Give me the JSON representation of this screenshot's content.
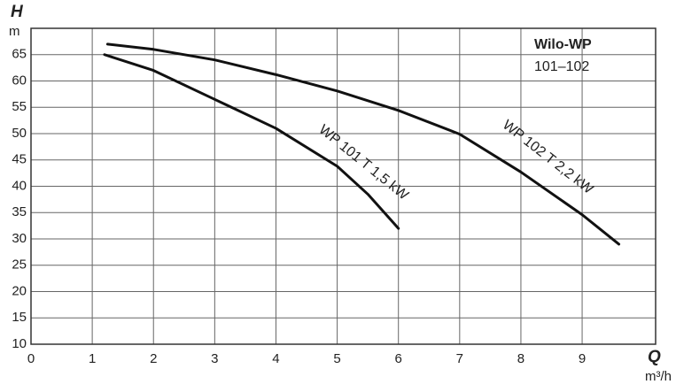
{
  "chart_data": {
    "type": "line",
    "y_label": "H",
    "y_unit": "m",
    "x_label": "Q",
    "x_unit": "m³/h",
    "annotations": [
      "Wilo-WP",
      "101–102"
    ],
    "xlim": [
      0,
      10.2
    ],
    "xticks": [
      0,
      1,
      2,
      3,
      4,
      5,
      6,
      7,
      8,
      9
    ],
    "ylim": [
      10,
      70
    ],
    "yticks": [
      10,
      15,
      20,
      25,
      30,
      35,
      40,
      45,
      50,
      55,
      60,
      65
    ],
    "grid": true,
    "series": [
      {
        "name": "WP 101 T 1,5 kW",
        "color": "#111111",
        "x": [
          1.2,
          2,
          3,
          4,
          5,
          5.5,
          6
        ],
        "values": [
          65,
          62,
          56.5,
          51,
          43.8,
          38.5,
          32
        ]
      },
      {
        "name": "WP 102 T 2,2 kW",
        "color": "#111111",
        "x": [
          1.25,
          2,
          3,
          4,
          5,
          6,
          7,
          8,
          9,
          9.6
        ],
        "values": [
          67,
          66,
          64,
          61.2,
          58.1,
          54.4,
          49.9,
          42.7,
          34.6,
          29
        ]
      }
    ]
  }
}
